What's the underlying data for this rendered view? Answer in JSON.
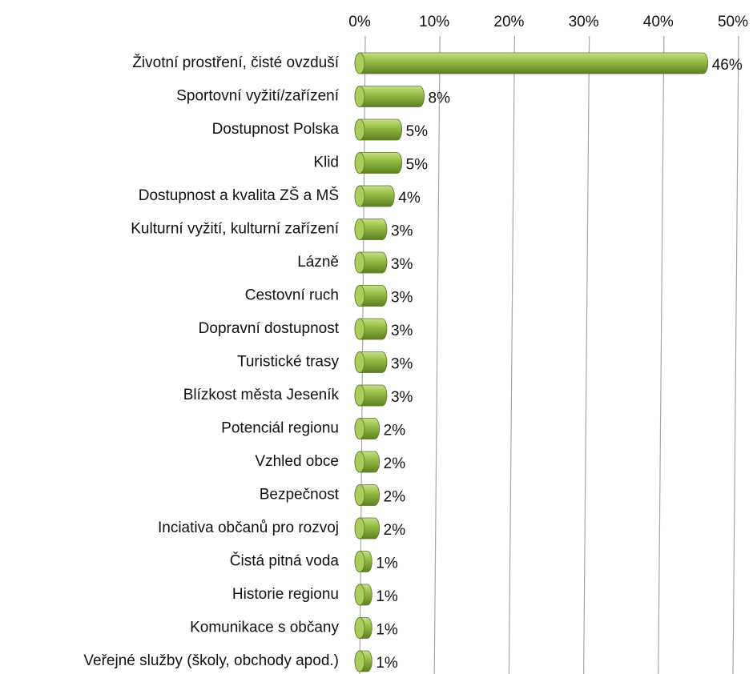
{
  "chart_data": {
    "type": "bar",
    "orientation": "horizontal",
    "categories": [
      "Životní prostření, čisté ovzduší",
      "Sportovní vyžití/zařízení",
      "Dostupnost Polska",
      "Klid",
      "Dostupnost a kvalita ZŠ a MŠ",
      "Kulturní vyžití, kulturní zařízení",
      "Lázně",
      "Cestovní ruch",
      "Dopravní dostupnost",
      "Turistické trasy",
      "Blízkost města Jeseník",
      "Potenciál regionu",
      "Vzhled obce",
      "Bezpečnost",
      "Inciativa občanů pro rozvoj",
      "Čistá pitná voda",
      "Historie regionu",
      "Komunikace s občany",
      "Veřejné služby (školy, obchody apod.)"
    ],
    "values": [
      46,
      8,
      5,
      5,
      4,
      3,
      3,
      3,
      3,
      3,
      3,
      2,
      2,
      2,
      2,
      1,
      1,
      1,
      1
    ],
    "value_labels": [
      "46%",
      "8%",
      "5%",
      "5%",
      "4%",
      "3%",
      "3%",
      "3%",
      "3%",
      "3%",
      "3%",
      "2%",
      "2%",
      "2%",
      "2%",
      "1%",
      "1%",
      "1%",
      "1%"
    ],
    "color": "#8db33f",
    "xlim": [
      0,
      50
    ],
    "xticks": [
      {
        "value": 0,
        "label": "0%"
      },
      {
        "value": 10,
        "label": "10%"
      },
      {
        "value": 20,
        "label": "20%"
      },
      {
        "value": 30,
        "label": "30%"
      },
      {
        "value": 40,
        "label": "40%"
      },
      {
        "value": 50,
        "label": "50%"
      }
    ],
    "grid": true
  }
}
